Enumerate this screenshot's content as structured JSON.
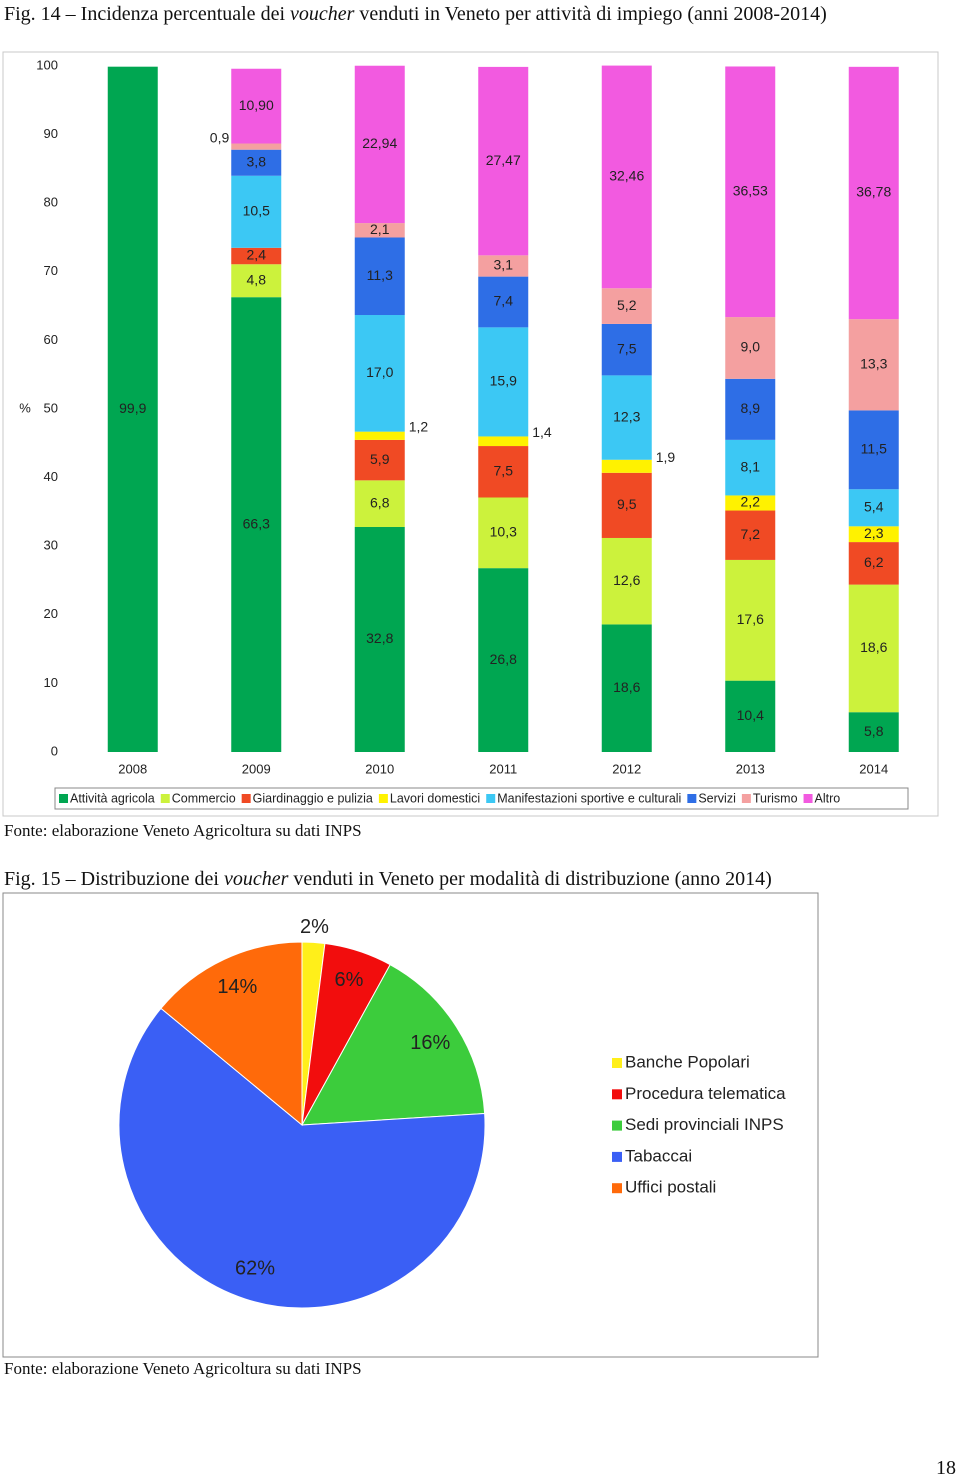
{
  "captions": [
    {
      "before": "Fig. 14 – Incidenza percentuale dei ",
      "italic": "voucher",
      "after": " venduti in Veneto per attività di impiego (anni 2008-2014)"
    },
    {
      "before": "Fig. 15 – Distribuzione dei ",
      "italic": "voucher",
      "after": " venduti in Veneto per modalità di distribuzione (anno 2014)"
    }
  ],
  "sources": [
    "Fonte: elaborazione Veneto Agricoltura su dati INPS",
    "Fonte: elaborazione Veneto Agricoltura su dati INPS"
  ],
  "page_number": "18",
  "chart_data": [
    {
      "type": "bar",
      "stacked": true,
      "ylabel": "%",
      "legend": "bottom",
      "categories": [
        "2008",
        "2009",
        "2010",
        "2011",
        "2012",
        "2013",
        "2014"
      ],
      "ylim": [
        0,
        100
      ],
      "yticks": [
        0,
        10,
        20,
        30,
        40,
        50,
        60,
        70,
        80,
        90,
        100
      ],
      "series": [
        {
          "name": "Attività agricola",
          "color": "#00a651",
          "values": [
            99.9,
            66.3,
            32.8,
            26.8,
            18.6,
            10.4,
            5.8
          ],
          "value_labels": [
            "99,9",
            "66,3",
            "32,8",
            "26,8",
            "18,6",
            "10,4",
            "5,8"
          ]
        },
        {
          "name": "Commercio",
          "color": "#ccf23c",
          "values": [
            null,
            4.8,
            6.8,
            10.3,
            12.6,
            17.6,
            18.6
          ],
          "value_labels": [
            null,
            "4,8",
            "6,8",
            "10,3",
            "12,6",
            "17,6",
            "18,6"
          ]
        },
        {
          "name": "Giardinaggio e pulizia",
          "color": "#f04a24",
          "values": [
            null,
            2.4,
            5.9,
            7.5,
            9.5,
            7.2,
            6.2
          ],
          "value_labels": [
            null,
            "2,4",
            "5,9",
            "7,5",
            "9,5",
            "7,2",
            "6,2"
          ]
        },
        {
          "name": "Lavori domestici",
          "color": "#fff200",
          "values": [
            null,
            null,
            1.2,
            1.4,
            1.9,
            2.2,
            2.3
          ],
          "value_labels": [
            null,
            null,
            "1,2",
            "1,4",
            "1,9",
            "2,2",
            "2,3"
          ]
        },
        {
          "name": "Manifestazioni sportive e culturali",
          "color": "#3cc8f4",
          "values": [
            null,
            10.5,
            17.0,
            15.9,
            12.3,
            8.1,
            5.4
          ],
          "value_labels": [
            null,
            "10,5",
            "17,0",
            "15,9",
            "12,3",
            "8,1",
            "5,4"
          ]
        },
        {
          "name": "Servizi",
          "color": "#2e6ee6",
          "values": [
            null,
            3.8,
            11.3,
            7.4,
            7.5,
            8.9,
            11.5
          ],
          "value_labels": [
            null,
            "3,8",
            "11,3",
            "7,4",
            "7,5",
            "8,9",
            "11,5"
          ]
        },
        {
          "name": "Turismo",
          "color": "#f4a0a0",
          "values": [
            null,
            0.9,
            2.1,
            3.1,
            5.2,
            9.0,
            13.3
          ],
          "value_labels": [
            null,
            "0,9",
            "2,1",
            "3,1",
            "5,2",
            "9,0",
            "13,3"
          ]
        },
        {
          "name": "Altro",
          "color": "#f25ae0",
          "values": [
            null,
            10.9,
            22.94,
            27.47,
            32.46,
            36.53,
            36.78
          ],
          "value_labels": [
            null,
            "10,90",
            "22,94",
            "27,47",
            "32,46",
            "36,53",
            "36,78"
          ]
        }
      ]
    },
    {
      "type": "pie",
      "legend": "right",
      "categories": [
        "Banche Popolari",
        "Procedura telematica",
        "Sedi provinciali INPS",
        "Tabaccai",
        "Uffici postali"
      ],
      "values": [
        2,
        6,
        16,
        62,
        14
      ],
      "value_labels": [
        "2%",
        "6%",
        "16%",
        "62%",
        "14%"
      ],
      "colors": [
        "#ffef1a",
        "#f20d0d",
        "#3ccc3c",
        "#3a5ff5",
        "#ff6a0a"
      ]
    }
  ]
}
